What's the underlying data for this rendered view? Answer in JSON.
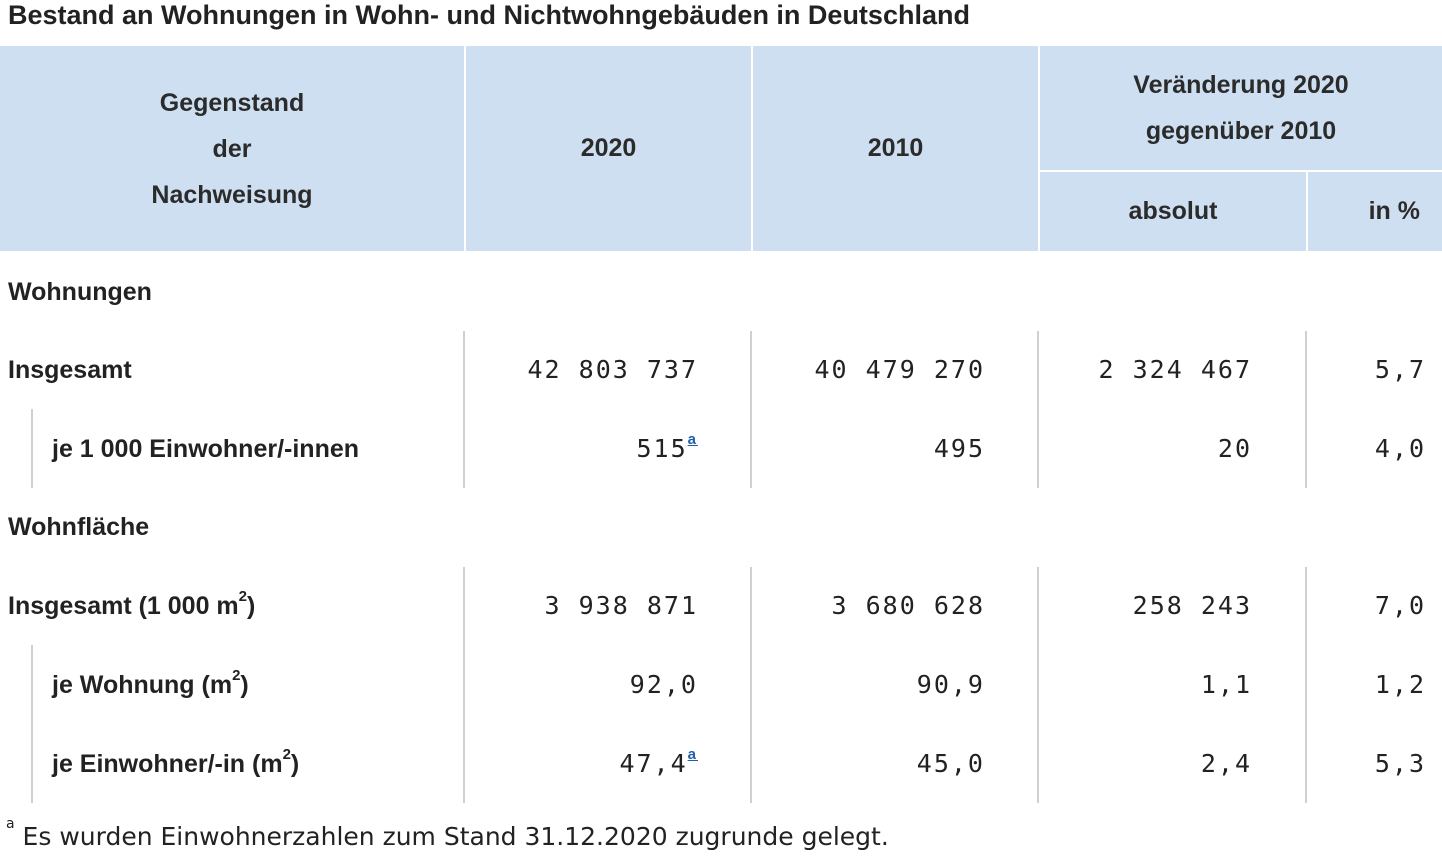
{
  "title": "Bestand an Wohnungen in Wohn- und Nichtwohngebäuden in Deutschland",
  "header": {
    "col_subject": [
      "Gegenstand",
      "der",
      "Nachweisung"
    ],
    "col_2020": "2020",
    "col_2010": "2010",
    "col_change": [
      "Veränderung 2020",
      "gegenüber 2010"
    ],
    "col_abs": "absolut",
    "col_pct": "in %"
  },
  "sections": [
    {
      "name": "Wohnungen",
      "rows": [
        {
          "label": "Insgesamt",
          "v2020": "42 803 737",
          "v2010": "40 479 270",
          "abs": "2 324 467",
          "pct": "5,7"
        },
        {
          "label": "je 1 000 Einwohner/-innen",
          "v2020": "515",
          "v2020_note": "a",
          "v2010": "495",
          "abs": "20",
          "pct": "4,0"
        }
      ]
    },
    {
      "name": "Wohnfläche",
      "rows": [
        {
          "label": "Insgesamt (1 000 m",
          "label_sup": "2",
          "label_end": ")",
          "v2020": "3 938 871",
          "v2010": "3 680 628",
          "abs": "258 243",
          "pct": "7,0"
        },
        {
          "label": "je Wohnung (m",
          "label_sup": "2",
          "label_end": ")",
          "v2020": "92,0",
          "v2010": "90,9",
          "abs": "1,1",
          "pct": "1,2"
        },
        {
          "label": "je Einwohner/-in (m",
          "label_sup": "2",
          "label_end": ")",
          "v2020": "47,4",
          "v2020_note": "a",
          "v2010": "45,0",
          "abs": "2,4",
          "pct": "5,3"
        }
      ]
    }
  ],
  "footnote": {
    "marker": "a",
    "text": "Es wurden Einwohnerzahlen zum Stand 31.12.2020 zugrunde gelegt."
  }
}
